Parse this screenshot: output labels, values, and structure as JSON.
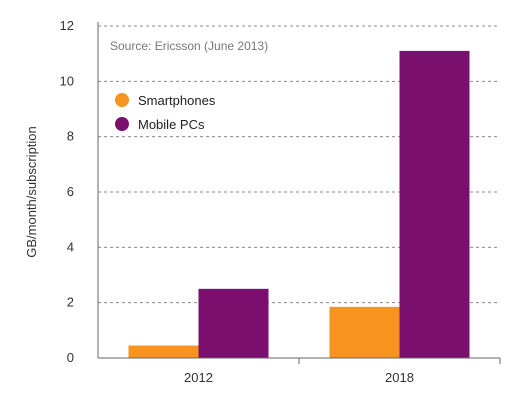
{
  "chart_data": {
    "type": "bar",
    "source_note": "Source: Ericsson (June 2013)",
    "categories": [
      "2012",
      "2018"
    ],
    "series": [
      {
        "name": "Smartphones",
        "color": "#F7931E",
        "values": [
          0.45,
          1.85
        ]
      },
      {
        "name": "Mobile PCs",
        "color": "#7B0F6E",
        "values": [
          2.5,
          11.1
        ]
      }
    ],
    "xlabel": "",
    "ylabel": "GB/month/subscription",
    "ylim": [
      0,
      12
    ],
    "yticks": [
      0,
      2,
      4,
      6,
      8,
      10,
      12
    ],
    "grid": true,
    "legend_position": "top-left"
  }
}
